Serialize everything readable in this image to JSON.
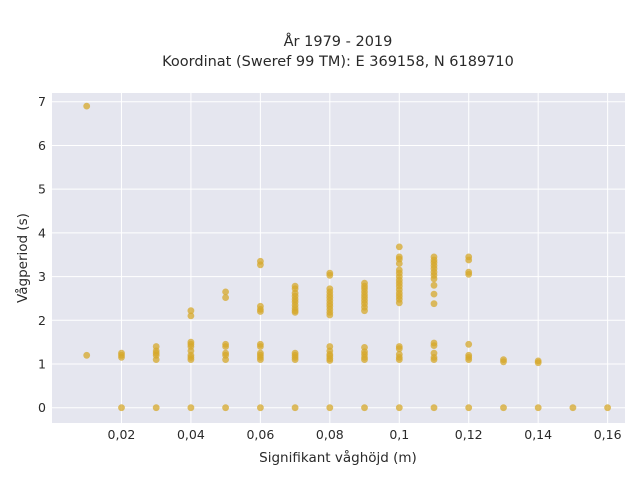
{
  "chart_data": {
    "type": "scatter",
    "title": [
      "År 1979 - 2019",
      "Koordinat (Sweref 99 TM): E 369158, N 6189710"
    ],
    "xlabel": "Signifikant våghöjd (m)",
    "ylabel": "Vågperiod (s)",
    "xlim": [
      0.0,
      0.165
    ],
    "ylim": [
      -0.35,
      7.2
    ],
    "xticks": [
      0.02,
      0.04,
      0.06,
      0.08,
      0.1,
      0.12,
      0.14,
      0.16
    ],
    "xtick_labels": [
      "0,02",
      "0,04",
      "0,06",
      "0,08",
      "0,1",
      "0,12",
      "0,14",
      "0,16"
    ],
    "yticks": [
      0,
      1,
      2,
      3,
      4,
      5,
      6,
      7
    ],
    "ytick_labels": [
      "0",
      "1",
      "2",
      "3",
      "4",
      "5",
      "6",
      "7"
    ],
    "grid": true,
    "point_color": "#d5a82b",
    "background_color": "#e5e6ef",
    "series": [
      {
        "points": [
          [
            0.01,
            6.9
          ],
          [
            0.01,
            1.2
          ],
          [
            0.02,
            1.15
          ],
          [
            0.02,
            1.2
          ],
          [
            0.02,
            1.25
          ],
          [
            0.02,
            0.0
          ],
          [
            0.03,
            1.1
          ],
          [
            0.03,
            1.2
          ],
          [
            0.03,
            1.25
          ],
          [
            0.03,
            1.3
          ],
          [
            0.03,
            1.4
          ],
          [
            0.03,
            0.0
          ],
          [
            0.04,
            2.22
          ],
          [
            0.04,
            2.1
          ],
          [
            0.04,
            1.5
          ],
          [
            0.04,
            1.45
          ],
          [
            0.04,
            1.4
          ],
          [
            0.04,
            1.3
          ],
          [
            0.04,
            1.2
          ],
          [
            0.04,
            1.15
          ],
          [
            0.04,
            1.1
          ],
          [
            0.04,
            0.0
          ],
          [
            0.05,
            2.65
          ],
          [
            0.05,
            2.52
          ],
          [
            0.05,
            1.45
          ],
          [
            0.05,
            1.4
          ],
          [
            0.05,
            1.25
          ],
          [
            0.05,
            1.2
          ],
          [
            0.05,
            1.1
          ],
          [
            0.05,
            0.0
          ],
          [
            0.06,
            3.35
          ],
          [
            0.06,
            3.27
          ],
          [
            0.06,
            2.32
          ],
          [
            0.06,
            2.25
          ],
          [
            0.06,
            2.2
          ],
          [
            0.06,
            1.45
          ],
          [
            0.06,
            1.4
          ],
          [
            0.06,
            1.25
          ],
          [
            0.06,
            1.2
          ],
          [
            0.06,
            1.15
          ],
          [
            0.06,
            1.1
          ],
          [
            0.06,
            0.0
          ],
          [
            0.07,
            2.78
          ],
          [
            0.07,
            2.72
          ],
          [
            0.07,
            2.62
          ],
          [
            0.07,
            2.55
          ],
          [
            0.07,
            2.48
          ],
          [
            0.07,
            2.42
          ],
          [
            0.07,
            2.35
          ],
          [
            0.07,
            2.28
          ],
          [
            0.07,
            2.22
          ],
          [
            0.07,
            2.18
          ],
          [
            0.07,
            1.25
          ],
          [
            0.07,
            1.2
          ],
          [
            0.07,
            1.15
          ],
          [
            0.07,
            1.1
          ],
          [
            0.07,
            0.0
          ],
          [
            0.08,
            3.08
          ],
          [
            0.08,
            3.03
          ],
          [
            0.08,
            2.72
          ],
          [
            0.08,
            2.65
          ],
          [
            0.08,
            2.58
          ],
          [
            0.08,
            2.52
          ],
          [
            0.08,
            2.45
          ],
          [
            0.08,
            2.38
          ],
          [
            0.08,
            2.32
          ],
          [
            0.08,
            2.25
          ],
          [
            0.08,
            2.18
          ],
          [
            0.08,
            2.12
          ],
          [
            0.08,
            1.4
          ],
          [
            0.08,
            1.3
          ],
          [
            0.08,
            1.22
          ],
          [
            0.08,
            1.18
          ],
          [
            0.08,
            1.12
          ],
          [
            0.08,
            1.08
          ],
          [
            0.08,
            0.0
          ],
          [
            0.09,
            2.85
          ],
          [
            0.09,
            2.78
          ],
          [
            0.09,
            2.72
          ],
          [
            0.09,
            2.65
          ],
          [
            0.09,
            2.58
          ],
          [
            0.09,
            2.52
          ],
          [
            0.09,
            2.45
          ],
          [
            0.09,
            2.38
          ],
          [
            0.09,
            2.3
          ],
          [
            0.09,
            2.22
          ],
          [
            0.09,
            1.38
          ],
          [
            0.09,
            1.28
          ],
          [
            0.09,
            1.22
          ],
          [
            0.09,
            1.15
          ],
          [
            0.09,
            1.1
          ],
          [
            0.09,
            0.0
          ],
          [
            0.1,
            3.68
          ],
          [
            0.1,
            3.45
          ],
          [
            0.1,
            3.4
          ],
          [
            0.1,
            3.3
          ],
          [
            0.1,
            3.15
          ],
          [
            0.1,
            3.08
          ],
          [
            0.1,
            3.0
          ],
          [
            0.1,
            2.92
          ],
          [
            0.1,
            2.85
          ],
          [
            0.1,
            2.78
          ],
          [
            0.1,
            2.7
          ],
          [
            0.1,
            2.62
          ],
          [
            0.1,
            2.55
          ],
          [
            0.1,
            2.48
          ],
          [
            0.1,
            2.4
          ],
          [
            0.1,
            1.4
          ],
          [
            0.1,
            1.35
          ],
          [
            0.1,
            1.22
          ],
          [
            0.1,
            1.15
          ],
          [
            0.1,
            1.1
          ],
          [
            0.1,
            0.0
          ],
          [
            0.11,
            3.45
          ],
          [
            0.11,
            3.38
          ],
          [
            0.11,
            3.32
          ],
          [
            0.11,
            3.25
          ],
          [
            0.11,
            3.18
          ],
          [
            0.11,
            3.1
          ],
          [
            0.11,
            3.03
          ],
          [
            0.11,
            2.95
          ],
          [
            0.11,
            2.8
          ],
          [
            0.11,
            2.6
          ],
          [
            0.11,
            2.38
          ],
          [
            0.11,
            1.48
          ],
          [
            0.11,
            1.42
          ],
          [
            0.11,
            1.25
          ],
          [
            0.11,
            1.15
          ],
          [
            0.11,
            1.1
          ],
          [
            0.11,
            0.0
          ],
          [
            0.12,
            3.45
          ],
          [
            0.12,
            3.38
          ],
          [
            0.12,
            3.1
          ],
          [
            0.12,
            3.05
          ],
          [
            0.12,
            1.45
          ],
          [
            0.12,
            1.2
          ],
          [
            0.12,
            1.15
          ],
          [
            0.12,
            1.1
          ],
          [
            0.12,
            0.0
          ],
          [
            0.13,
            1.1
          ],
          [
            0.13,
            1.05
          ],
          [
            0.13,
            0.0
          ],
          [
            0.14,
            1.07
          ],
          [
            0.14,
            1.03
          ],
          [
            0.14,
            0.0
          ],
          [
            0.15,
            0.0
          ],
          [
            0.16,
            0.0
          ]
        ]
      }
    ]
  }
}
